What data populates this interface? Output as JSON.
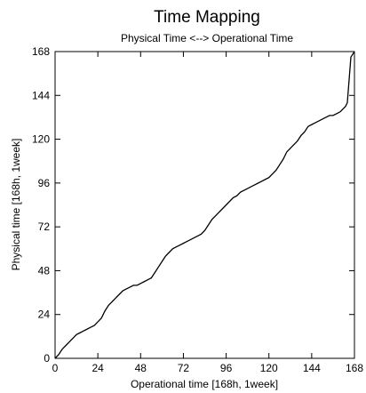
{
  "chart_data": {
    "type": "line",
    "title": "Time Mapping",
    "subtitle": "Physical Time <--> Operational Time",
    "xlabel": "Operational time [168h, 1week]",
    "ylabel": "Physical time [168h, 1week]",
    "xlim": [
      0,
      168
    ],
    "ylim": [
      0,
      168
    ],
    "xticks": [
      0,
      24,
      48,
      72,
      96,
      120,
      144,
      168
    ],
    "yticks": [
      0,
      24,
      48,
      72,
      96,
      120,
      144,
      168
    ],
    "grid": false,
    "series": [
      {
        "x": [
          0,
          2,
          4,
          6,
          8,
          10,
          12,
          14,
          16,
          18,
          20,
          22,
          24,
          26,
          28,
          30,
          32,
          34,
          36,
          38,
          40,
          42,
          44,
          46,
          48,
          50,
          52,
          54,
          56,
          58,
          60,
          62,
          64,
          66,
          68,
          70,
          72,
          74,
          76,
          78,
          80,
          82,
          84,
          86,
          88,
          90,
          92,
          94,
          96,
          98,
          100,
          102,
          104,
          106,
          108,
          110,
          112,
          114,
          116,
          118,
          120,
          122,
          124,
          126,
          128,
          130,
          132,
          134,
          136,
          138,
          140,
          142,
          144,
          146,
          148,
          150,
          152,
          154,
          156,
          158,
          160,
          161,
          162,
          163,
          164,
          166,
          168
        ],
        "y": [
          0,
          2,
          5,
          7,
          9,
          11,
          13,
          14,
          15,
          16,
          17,
          18,
          20,
          22,
          26,
          29,
          31,
          33,
          35,
          37,
          38,
          39,
          40,
          40,
          41,
          42,
          43,
          44,
          47,
          50,
          53,
          56,
          58,
          60,
          61,
          62,
          63,
          64,
          65,
          66,
          67,
          68,
          70,
          73,
          76,
          78,
          80,
          82,
          84,
          86,
          88,
          89,
          91,
          92,
          93,
          94,
          95,
          96,
          97,
          98,
          99,
          101,
          103,
          106,
          109,
          113,
          115,
          117,
          119,
          122,
          124,
          127,
          128,
          129,
          130,
          131,
          132,
          133,
          133,
          134,
          135,
          136,
          137,
          138,
          140,
          165,
          168
        ]
      }
    ]
  }
}
